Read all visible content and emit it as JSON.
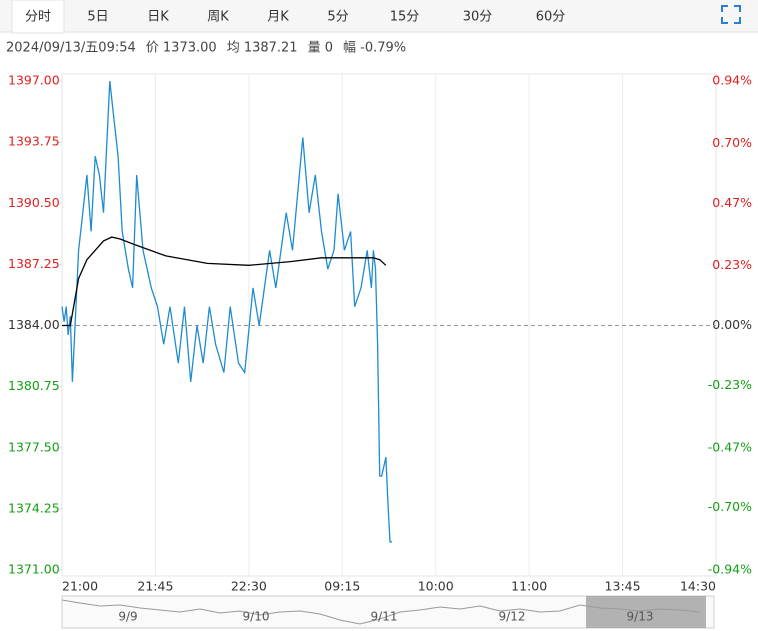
{
  "tabs": [
    "分时",
    "5日",
    "日K",
    "周K",
    "月K",
    "5分",
    "15分",
    "30分",
    "60分"
  ],
  "active_tab": 0,
  "info": [
    "2024/09/13/五09:54",
    "价 1373.00",
    "均 1387.21",
    "量 0",
    "幅 -0.79%"
  ],
  "chart_data": {
    "type": "line",
    "prev_close": 1384,
    "x": [
      0,
      1,
      2,
      3,
      4,
      5,
      8,
      10,
      12,
      14,
      16,
      18,
      20,
      23,
      25,
      27,
      29,
      32,
      34,
      36,
      39,
      43,
      46,
      49,
      52,
      56,
      59,
      62,
      65,
      68,
      71,
      74,
      78,
      81,
      85,
      88,
      92,
      95,
      100,
      103,
      108,
      111,
      116,
      119,
      122,
      125,
      128,
      131,
      133,
      136,
      139,
      141,
      144,
      147,
      149,
      150,
      151,
      152,
      153,
      154,
      156,
      157,
      158,
      159
    ],
    "series": [
      {
        "name": "价",
        "color": "#1f8bd0",
        "values": [
          1385,
          1384.2,
          1385,
          1383.5,
          1384.5,
          1381,
          1388,
          1390,
          1392,
          1389,
          1393,
          1392,
          1390,
          1397,
          1395,
          1393,
          1389,
          1387,
          1386,
          1392,
          1388,
          1386,
          1385,
          1383,
          1385,
          1382,
          1385,
          1381,
          1384,
          1382,
          1385,
          1383,
          1381.5,
          1385,
          1382,
          1381.5,
          1386,
          1384,
          1388,
          1386,
          1390,
          1388,
          1394,
          1390,
          1392,
          1389,
          1387,
          1388,
          1391,
          1388,
          1389,
          1385,
          1386,
          1388,
          1386,
          1388,
          1387,
          1383,
          1376,
          1376,
          1377,
          1374.5,
          1372.5,
          1372.5
        ]
      }
    ],
    "avg": {
      "name": "均",
      "color": "#000000",
      "x": [
        0,
        4,
        8,
        12,
        16,
        20,
        24,
        28,
        35,
        50,
        70,
        90,
        110,
        125,
        140,
        150,
        153,
        156
      ],
      "values": [
        1384,
        1384,
        1386.5,
        1387.5,
        1388,
        1388.5,
        1388.7,
        1388.6,
        1388.3,
        1387.7,
        1387.3,
        1387.2,
        1387.4,
        1387.6,
        1387.6,
        1387.6,
        1387.5,
        1387.2
      ]
    },
    "xlim": [
      0,
      315
    ],
    "xticks": [
      {
        "value": 0,
        "label": "21:00"
      },
      {
        "value": 45,
        "label": "21:45"
      },
      {
        "value": 90,
        "label": "22:30"
      },
      {
        "value": 135,
        "label": "09:15"
      },
      {
        "value": 180,
        "label": "10:00"
      },
      {
        "value": 225,
        "label": "11:00"
      },
      {
        "value": 270,
        "label": "13:45"
      },
      {
        "value": 315,
        "label": "14:30"
      }
    ],
    "ylim": [
      1371,
      1397
    ],
    "yticks": [
      {
        "value": 1371,
        "label": "1371.00"
      },
      {
        "value": 1374.25,
        "label": "1374.25"
      },
      {
        "value": 1377.5,
        "label": "1377.50"
      },
      {
        "value": 1380.75,
        "label": "1380.75"
      },
      {
        "value": 1384,
        "label": "1384.00"
      },
      {
        "value": 1387.25,
        "label": "1387.25"
      },
      {
        "value": 1390.5,
        "label": "1390.50"
      },
      {
        "value": 1393.75,
        "label": "1393.75"
      },
      {
        "value": 1397,
        "label": "1397.00"
      }
    ],
    "y2lim": [
      -0.94,
      0.94
    ],
    "y2ticks": [
      {
        "value": -0.94,
        "label": "-0.94%"
      },
      {
        "value": -0.7,
        "label": "-0.70%"
      },
      {
        "value": -0.47,
        "label": "-0.47%"
      },
      {
        "value": -0.23,
        "label": "-0.23%"
      },
      {
        "value": 0,
        "label": "0.00%"
      },
      {
        "value": 0.23,
        "label": "0.23%"
      },
      {
        "value": 0.47,
        "label": "0.47%"
      },
      {
        "value": 0.7,
        "label": "0.70%"
      },
      {
        "value": 0.94,
        "label": "0.94%"
      }
    ],
    "up_color": "#e02020",
    "down_color": "#14a014",
    "grid": true
  },
  "navigator": [
    "9/9",
    "9/10",
    "9/11",
    "9/12",
    "9/13"
  ]
}
